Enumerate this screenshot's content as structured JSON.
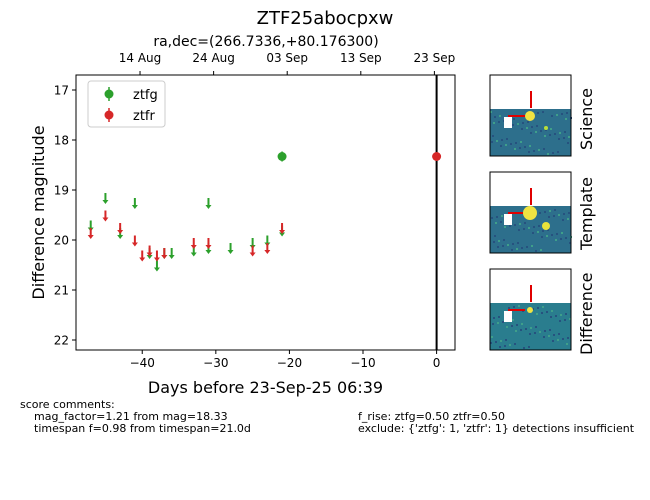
{
  "chart_data": {
    "type": "scatter",
    "title": "ZTF25abocpxw",
    "subtitle": "ra,dec=(266.7336,+80.176300)",
    "xlabel": "Days before 23-Sep-25 06:39",
    "ylabel": "Difference magnitude",
    "xlim": [
      -49,
      2.5
    ],
    "ylim": [
      22.2,
      16.7
    ],
    "y_inverted": true,
    "x_ticks": [
      -40,
      -30,
      -20,
      -10,
      0
    ],
    "x_tick_labels": [
      "−40",
      "−30",
      "−20",
      "−10",
      "0"
    ],
    "y_ticks": [
      17,
      18,
      19,
      20,
      21,
      22
    ],
    "y_tick_labels": [
      "17",
      "18",
      "19",
      "20",
      "21",
      "22"
    ],
    "top_axis_ticks": [
      {
        "x": -40.3,
        "label": "14 Aug"
      },
      {
        "x": -30.3,
        "label": "24 Aug"
      },
      {
        "x": -20.3,
        "label": "03 Sep"
      },
      {
        "x": -10.3,
        "label": "13 Sep"
      },
      {
        "x": -0.3,
        "label": "23 Sep"
      }
    ],
    "vertical_line_x": 0,
    "legend_position": "top-left",
    "grid": false,
    "series": [
      {
        "name": "ztfg",
        "color": "#2ca02c",
        "detections": [
          {
            "x": -21.0,
            "y": 18.33,
            "err": 0.1
          }
        ],
        "upper_limits": [
          {
            "x": -47.0,
            "y": 19.75
          },
          {
            "x": -45.0,
            "y": 19.2
          },
          {
            "x": -43.0,
            "y": 19.9
          },
          {
            "x": -41.0,
            "y": 19.3
          },
          {
            "x": -39.0,
            "y": 20.3
          },
          {
            "x": -38.0,
            "y": 20.55
          },
          {
            "x": -37.0,
            "y": 20.3
          },
          {
            "x": -36.0,
            "y": 20.3
          },
          {
            "x": -33.0,
            "y": 20.25
          },
          {
            "x": -31.0,
            "y": 20.2
          },
          {
            "x": -31.0,
            "y": 19.3
          },
          {
            "x": -28.0,
            "y": 20.2
          },
          {
            "x": -25.0,
            "y": 20.1
          },
          {
            "x": -23.0,
            "y": 20.05
          },
          {
            "x": -21.0,
            "y": 19.85
          }
        ]
      },
      {
        "name": "ztfr",
        "color": "#d62728",
        "detections": [
          {
            "x": 0.0,
            "y": 18.33,
            "err": 0.05
          }
        ],
        "upper_limits": [
          {
            "x": -47.0,
            "y": 19.9
          },
          {
            "x": -45.0,
            "y": 19.55
          },
          {
            "x": -43.0,
            "y": 19.8
          },
          {
            "x": -41.0,
            "y": 20.05
          },
          {
            "x": -40.0,
            "y": 20.35
          },
          {
            "x": -39.0,
            "y": 20.25
          },
          {
            "x": -38.0,
            "y": 20.35
          },
          {
            "x": -37.0,
            "y": 20.3
          },
          {
            "x": -33.0,
            "y": 20.1
          },
          {
            "x": -31.0,
            "y": 20.1
          },
          {
            "x": -25.0,
            "y": 20.25
          },
          {
            "x": -23.0,
            "y": 20.2
          },
          {
            "x": -21.0,
            "y": 19.8
          }
        ]
      }
    ]
  },
  "cutouts": [
    {
      "label": "Science"
    },
    {
      "label": "Template"
    },
    {
      "label": "Difference"
    }
  ],
  "comments": {
    "header": "score comments:",
    "left": [
      "mag_factor=1.21 from mag=18.33",
      "timespan f=0.98 from timespan=21.0d"
    ],
    "right": [
      "f_rise: ztfg=0.50 ztfr=0.50",
      "exclude: {'ztfg': 1, 'ztfr': 1} detections insufficient"
    ]
  }
}
